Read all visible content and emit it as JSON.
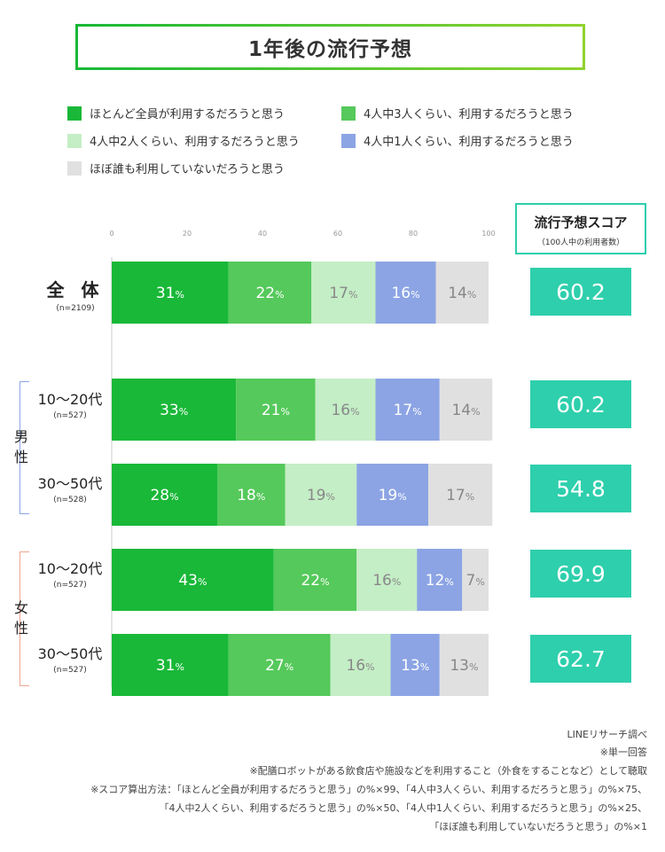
{
  "title": "1年後の流行予想",
  "legend": [
    {
      "label": "ほとんど全員が利用するだろうと思う",
      "color": "#19b838"
    },
    {
      "label": "4人中3人くらい、利用するだろうと思う",
      "color": "#55c95b"
    },
    {
      "label": "4人中2人くらい、利用するだろうと思う",
      "color": "#c4eec6"
    },
    {
      "label": "4人中1人くらい、利用するだろうと思う",
      "color": "#8ca4e4"
    },
    {
      "label": "ほぼ誰も利用していないだろうと思う",
      "color": "#e0e0e0"
    }
  ],
  "score_header": {
    "title": "流行予想スコア",
    "subtitle": "（100人中の利用者数）"
  },
  "gender_labels": {
    "male": "男性",
    "female": "女性"
  },
  "chart_data": {
    "type": "bar",
    "orientation": "horizontal",
    "stacked": true,
    "xlim": [
      0,
      100
    ],
    "x_ticks": [
      "0",
      "20",
      "40",
      "60",
      "80",
      "100"
    ],
    "value_suffix": "%",
    "categories": [
      {
        "label": "全 体",
        "n": "(n=2109)"
      },
      {
        "label": "10〜20代",
        "n": "(n=527)"
      },
      {
        "label": "30〜50代",
        "n": "(n=528)"
      },
      {
        "label": "10〜20代",
        "n": "(n=527)"
      },
      {
        "label": "30〜50代",
        "n": "(n=527)"
      }
    ],
    "series": [
      {
        "name": "ほとんど全員が利用するだろうと思う",
        "values": [
          31,
          33,
          28,
          43,
          31
        ]
      },
      {
        "name": "4人中3人くらい、利用するだろうと思う",
        "values": [
          22,
          21,
          18,
          22,
          27
        ]
      },
      {
        "name": "4人中2人くらい、利用するだろうと思う",
        "values": [
          17,
          16,
          19,
          16,
          16
        ]
      },
      {
        "name": "4人中1人くらい、利用するだろうと思う",
        "values": [
          16,
          17,
          19,
          12,
          13
        ]
      },
      {
        "name": "ほぼ誰も利用していないだろうと思う",
        "values": [
          14,
          14,
          17,
          7,
          13
        ]
      }
    ],
    "label_colors": [
      "#ffffff",
      "#ffffff",
      "#888888",
      "#ffffff",
      "#888888"
    ],
    "scores": [
      "60.2",
      "60.2",
      "54.8",
      "69.9",
      "62.7"
    ],
    "bracket_colors": {
      "male": "#8ca4e4",
      "female": "#f0a590"
    }
  },
  "footnotes": [
    "LINEリサーチ調べ",
    "※単一回答",
    "※配膳ロボットがある飲食店や施設などを利用すること（外食をすることなど）として聴取",
    "※スコア算出方法：「ほとんど全員が利用するだろうと思う」の%×99、「4人中3人くらい、利用するだろうと思う」の%×75、",
    "「4人中2人くらい、利用するだろうと思う」の%×50、「4人中1人くらい、利用するだろうと思う」の%×25、",
    "「ほぼ誰も利用していないだろうと思う」の%×1"
  ]
}
